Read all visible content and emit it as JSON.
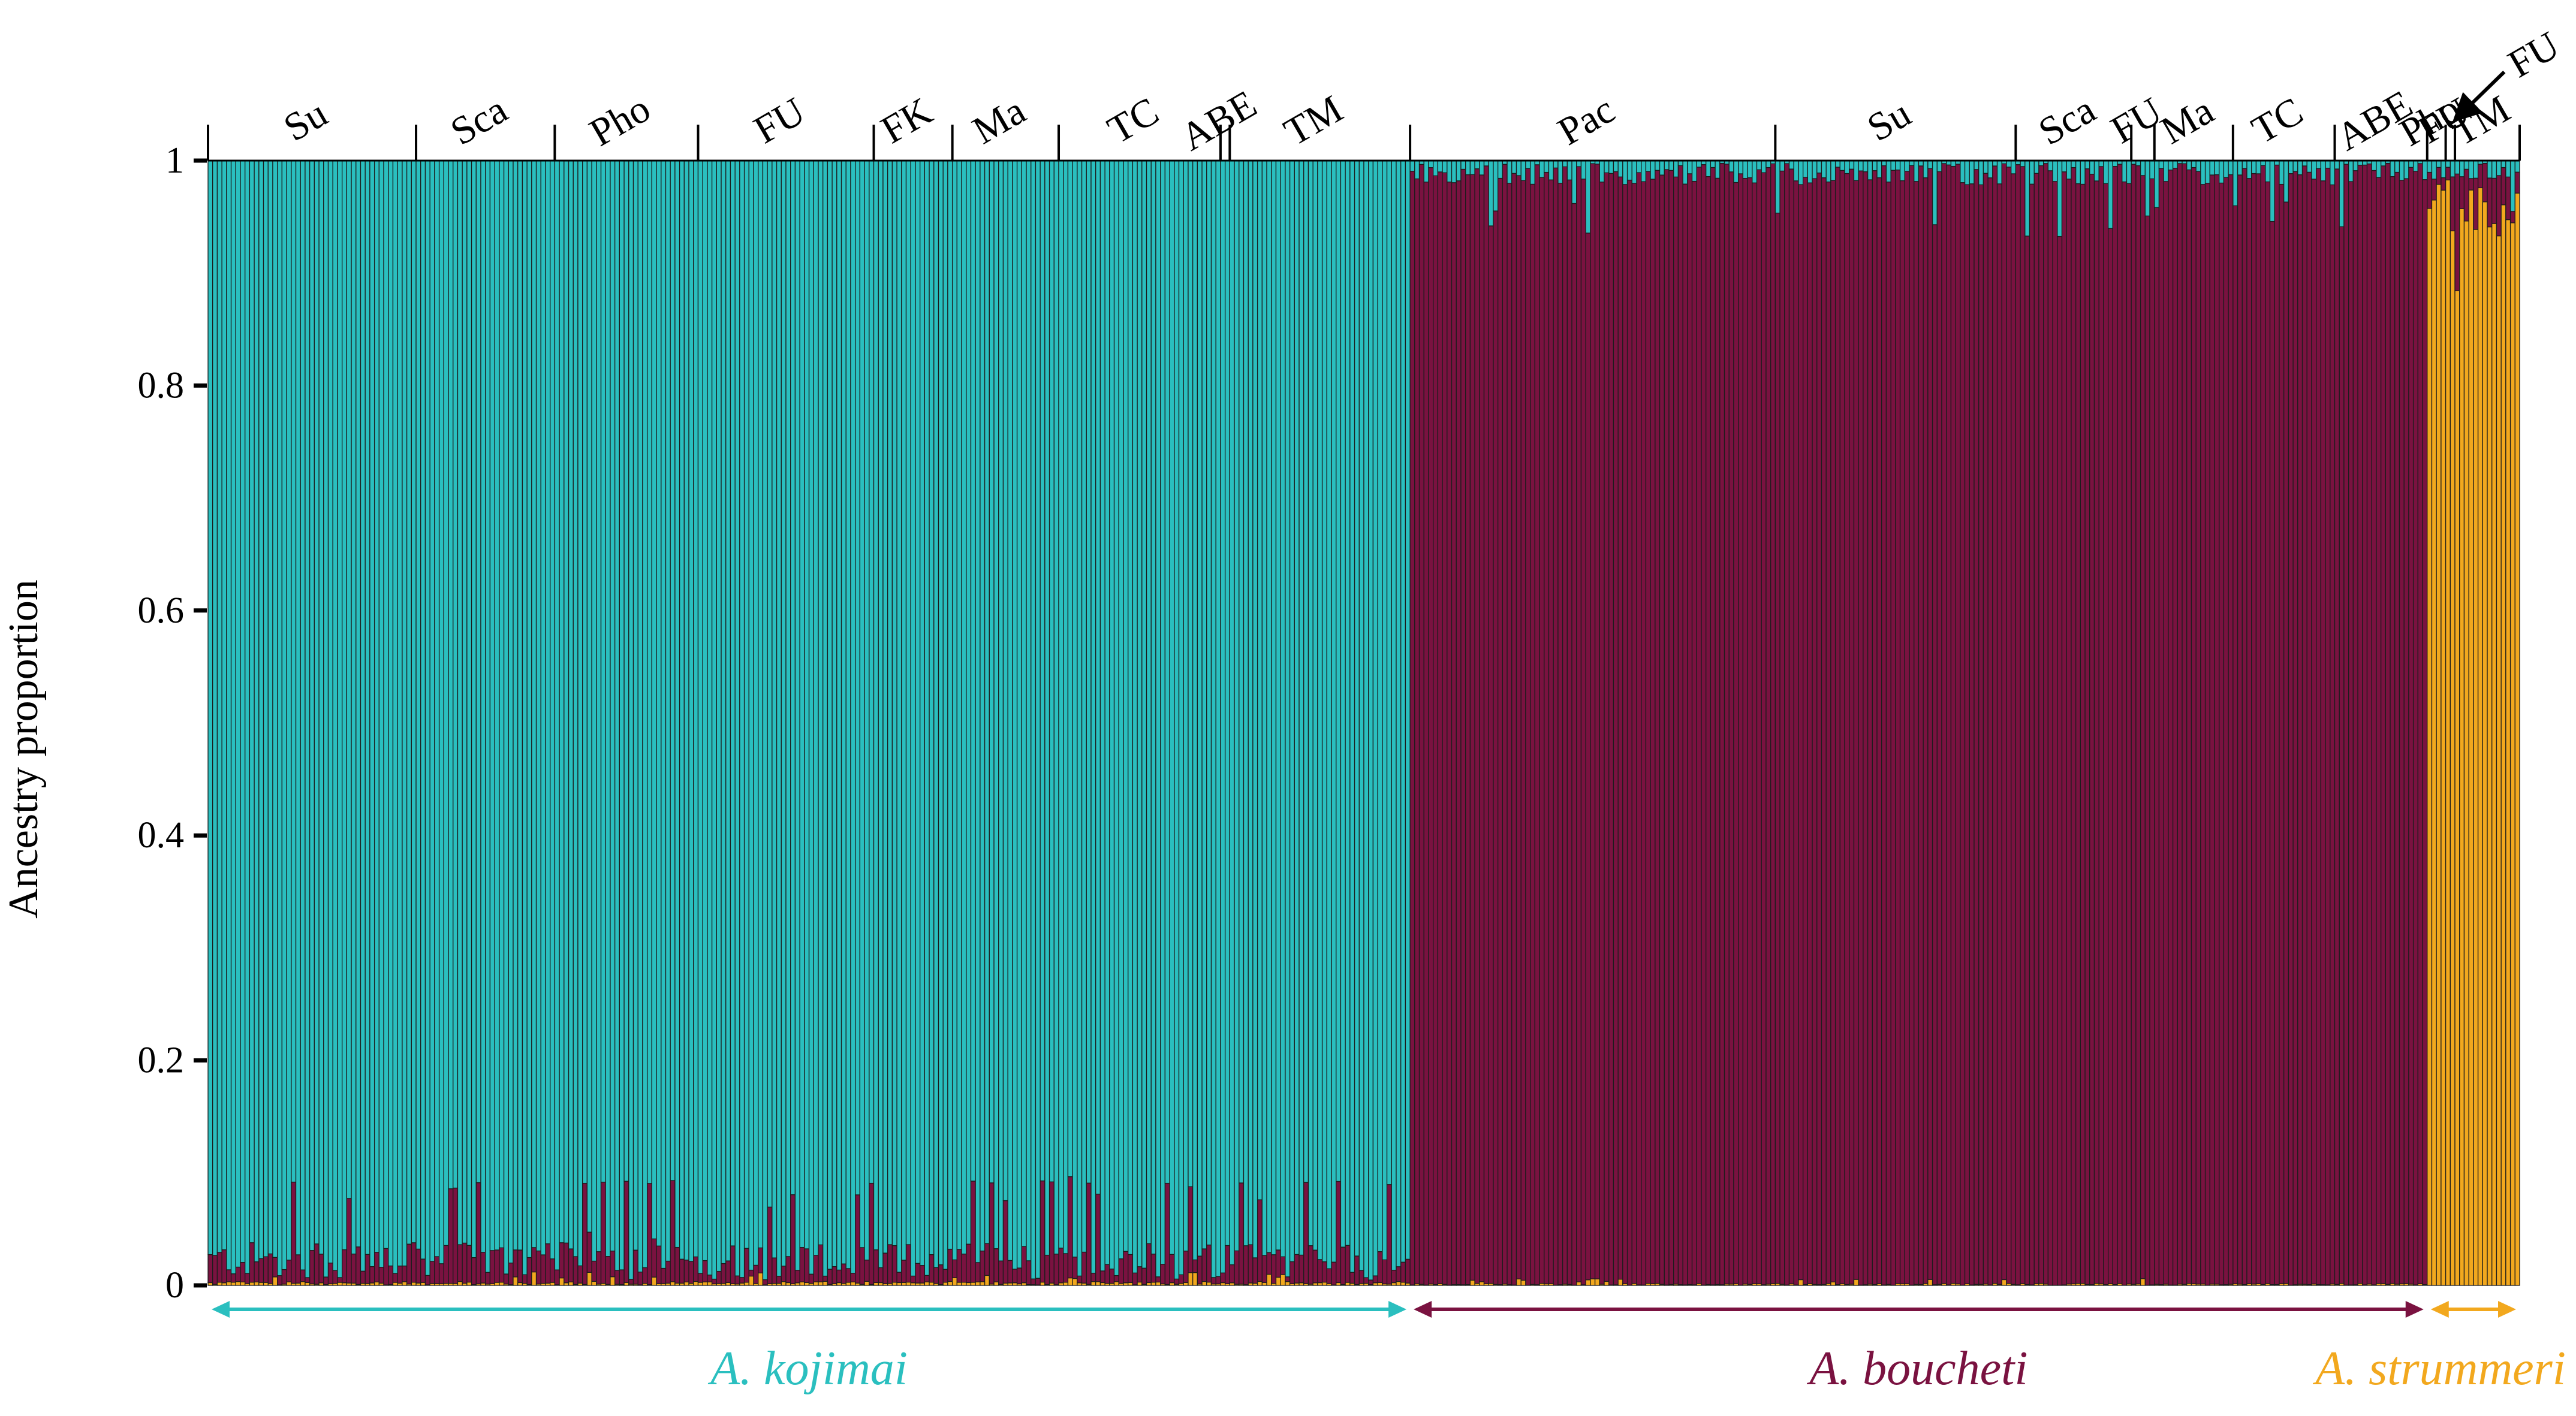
{
  "chart_data": {
    "type": "bar",
    "subtype": "stacked-100-percent",
    "title": "",
    "xlabel": "",
    "ylabel": "Ancestry proportion",
    "ylim": [
      0,
      1
    ],
    "yticks": [
      0,
      0.2,
      0.4,
      0.6,
      0.8,
      1
    ],
    "ytick_labels": [
      "0",
      "0.2",
      "0.4",
      "0.6",
      "0.8",
      "1"
    ],
    "grid": false,
    "colors": {
      "A. kojimai": "#2ABFBF",
      "A. boucheti": "#7A1240",
      "A. strummeri": "#F2A81E",
      "bar_edge": "#1c1c1c"
    },
    "series": [
      {
        "name": "A. kojimai",
        "cluster": "teal"
      },
      {
        "name": "A. boucheti",
        "cluster": "maroon"
      },
      {
        "name": "A. strummeri",
        "cluster": "orange"
      }
    ],
    "species_groups": [
      {
        "name": "A. kojimai",
        "dominant": "A. kojimai",
        "n_individuals": 260,
        "mean_minor_proportions": {
          "A. boucheti": 0.02,
          "A. strummeri": 0.002
        },
        "max_minor_proportion": 0.09,
        "populations": [
          {
            "label": "Su",
            "n": 45
          },
          {
            "label": "Sca",
            "n": 30
          },
          {
            "label": "Pho",
            "n": 31
          },
          {
            "label": "FU",
            "n": 38
          },
          {
            "label": "FK",
            "n": 17
          },
          {
            "label": "Ma",
            "n": 23
          },
          {
            "label": "TC",
            "n": 35
          },
          {
            "label": "ABE",
            "n": 2
          },
          {
            "label": "TM",
            "n": 39
          }
        ]
      },
      {
        "name": "A. boucheti",
        "dominant": "A. boucheti",
        "n_individuals": 220,
        "mean_minor_proportions": {
          "A. kojimai": 0.012,
          "A. strummeri": 0.001
        },
        "max_minor_proportion": 0.09,
        "populations": [
          {
            "label": "Pac",
            "n": 79
          },
          {
            "label": "Su",
            "n": 52
          },
          {
            "label": "Sca",
            "n": 25
          },
          {
            "label": "FU",
            "n": 5
          },
          {
            "label": "Ma",
            "n": 17
          },
          {
            "label": "TC",
            "n": 22
          },
          {
            "label": "ABE",
            "n": 20
          }
        ]
      },
      {
        "name": "A. strummeri",
        "dominant": "A. strummeri",
        "n_individuals": 20,
        "mean_minor_proportions": {
          "A. boucheti": 0.03,
          "A. kojimai": 0.01
        },
        "max_minor_proportion": 0.14,
        "populations": [
          {
            "label": "Pho",
            "n": 4
          },
          {
            "label": "FU",
            "n": 2
          },
          {
            "label": "TM",
            "n": 14
          }
        ]
      }
    ],
    "annotations": [
      {
        "text": "FU",
        "type": "arrow-callout",
        "group": "A. strummeri",
        "population": "FU"
      }
    ]
  }
}
